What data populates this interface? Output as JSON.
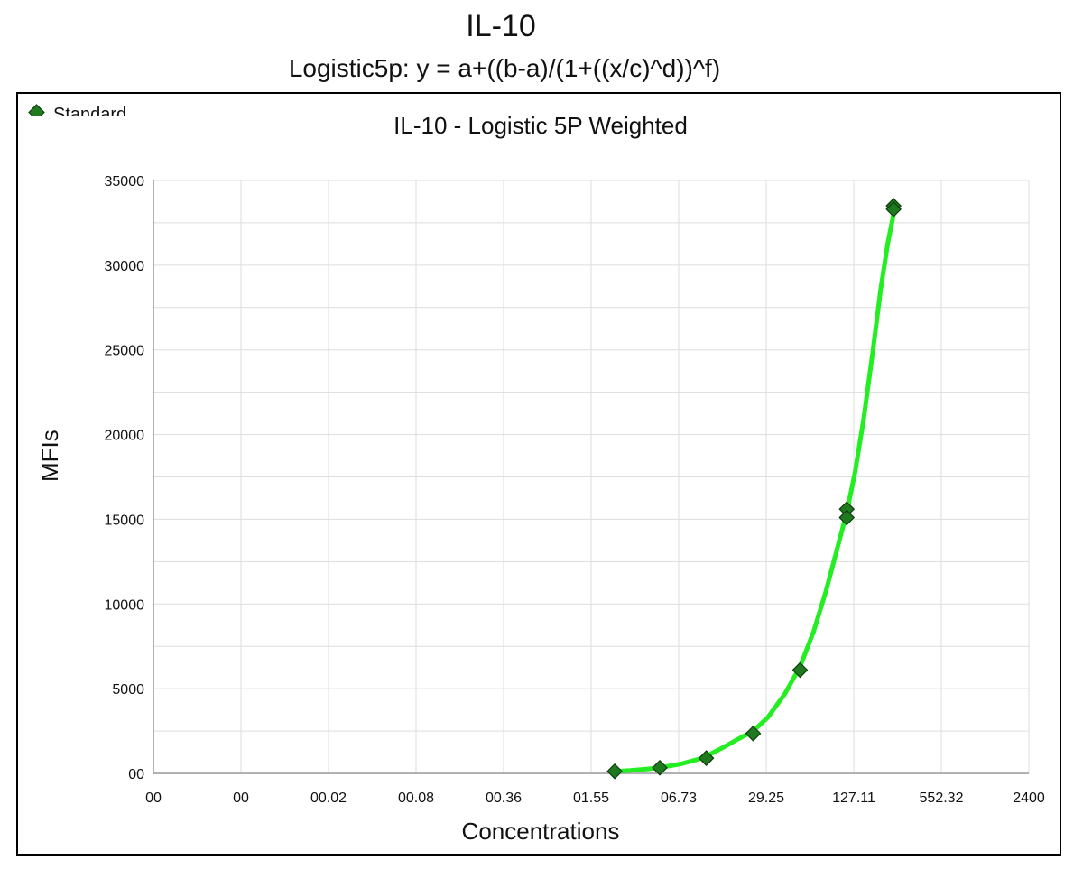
{
  "header": {
    "title": "IL-10",
    "subtitle": "Logistic5p: y = a+((b-a)/(1+((x/c)^d))^f)"
  },
  "colors": {
    "curve": "#22ee22",
    "marker_fill": "#1f7a1f",
    "marker_stroke": "#0b3d0b",
    "grid": "#dddddd",
    "axis": "#999999"
  },
  "chart_data": {
    "type": "scatter",
    "title": "IL-10 - Logistic 5P Weighted",
    "xlabel": "Concentrations",
    "ylabel": "MFIs",
    "x_scale": "log",
    "x_ticks": [
      "00",
      "00",
      "00.02",
      "00.08",
      "00.36",
      "01.55",
      "06.73",
      "29.25",
      "127.11",
      "552.32",
      "2400"
    ],
    "y_ticks": [
      "00",
      "5000",
      "10000",
      "15000",
      "20000",
      "25000",
      "30000",
      "35000"
    ],
    "ylim": [
      0,
      35000
    ],
    "grid": true,
    "legend": {
      "position": "top-left",
      "entries": [
        "Standard"
      ]
    },
    "series": [
      {
        "name": "Standard",
        "points": [
          {
            "x": 2.3,
            "y": 120
          },
          {
            "x": 4.9,
            "y": 330
          },
          {
            "x": 10.7,
            "y": 900
          },
          {
            "x": 23.5,
            "y": 2350
          },
          {
            "x": 51.6,
            "y": 6100
          },
          {
            "x": 113.0,
            "y": 15600
          },
          {
            "x": 113.0,
            "y": 15100
          },
          {
            "x": 248.0,
            "y": 33500
          },
          {
            "x": 248.0,
            "y": 33300
          }
        ]
      }
    ],
    "fit_curve": {
      "x": [
        2.3,
        3.0,
        4.0,
        5.0,
        7.0,
        10.0,
        14.0,
        18.0,
        23.5,
        30.0,
        40.0,
        51.6,
        65.0,
        80.0,
        95.0,
        113.0,
        130.0,
        150.0,
        175.0,
        200.0,
        225.0,
        248.0
      ],
      "y": [
        120,
        170,
        260,
        350,
        560,
        900,
        1500,
        2000,
        2500,
        3300,
        4700,
        6300,
        8400,
        10800,
        13100,
        15400,
        17800,
        20900,
        24900,
        28600,
        31300,
        33000
      ]
    }
  }
}
